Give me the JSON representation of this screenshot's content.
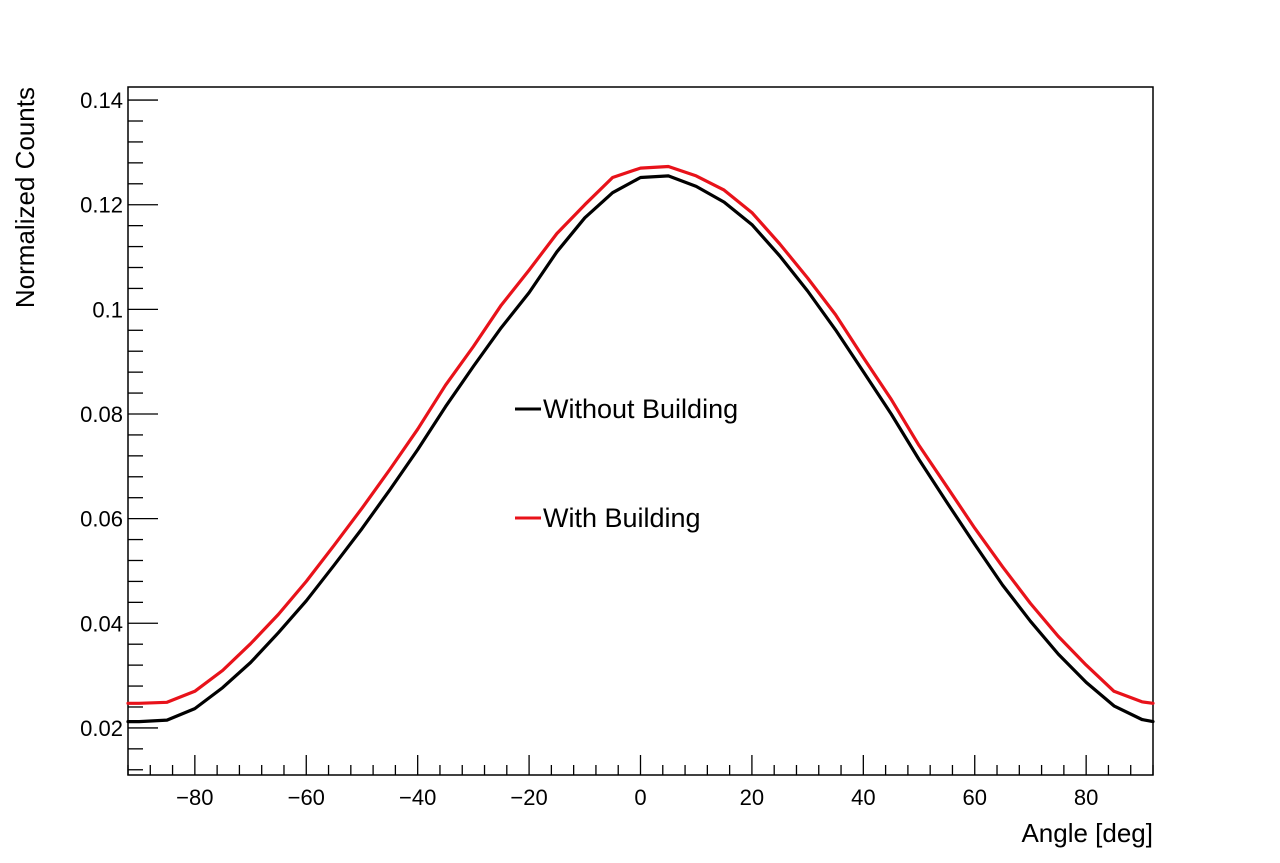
{
  "chart_data": {
    "type": "line",
    "title": "",
    "xlabel": "Angle [deg]",
    "ylabel": "Normalized Counts",
    "xlim": [
      -92,
      92
    ],
    "ylim": [
      0.011,
      0.1425
    ],
    "x_ticks": [
      -80,
      -60,
      -40,
      -20,
      0,
      20,
      40,
      60,
      80
    ],
    "x_tick_labels": [
      "−80",
      "−60",
      "−40",
      "−20",
      "0",
      "20",
      "40",
      "60",
      "80"
    ],
    "y_ticks": [
      0.02,
      0.04,
      0.06,
      0.08,
      0.1,
      0.12,
      0.14
    ],
    "y_tick_labels": [
      "0.02",
      "0.04",
      "0.06",
      "0.08",
      "0.1",
      "0.12",
      "0.14"
    ],
    "grid": false,
    "legend_position": "center",
    "x": [
      -92,
      -90,
      -85,
      -80,
      -75,
      -70,
      -65,
      -60,
      -55,
      -50,
      -45,
      -40,
      -35,
      -30,
      -25,
      -20,
      -15,
      -10,
      -5,
      0,
      5,
      10,
      15,
      20,
      25,
      30,
      35,
      40,
      45,
      50,
      55,
      60,
      65,
      70,
      75,
      80,
      85,
      90,
      92
    ],
    "series": [
      {
        "name": "Without Building",
        "color": "#000000",
        "values": [
          0.0212,
          0.0212,
          0.0215,
          0.0237,
          0.0277,
          0.0325,
          0.0382,
          0.0443,
          0.0511,
          0.0581,
          0.0655,
          0.0732,
          0.0814,
          0.0891,
          0.0965,
          0.1032,
          0.111,
          0.1175,
          0.1223,
          0.1252,
          0.1255,
          0.1235,
          0.1205,
          0.1162,
          0.1102,
          0.1035,
          0.0961,
          0.0881,
          0.08,
          0.0713,
          0.0631,
          0.0551,
          0.0473,
          0.0404,
          0.0341,
          0.0287,
          0.0242,
          0.0216,
          0.0212
        ]
      },
      {
        "name": "With Building",
        "color": "#e8121a",
        "values": [
          0.0247,
          0.0247,
          0.0249,
          0.027,
          0.031,
          0.0361,
          0.0417,
          0.048,
          0.0549,
          0.062,
          0.0694,
          0.0771,
          0.0855,
          0.0929,
          0.1008,
          0.1075,
          0.1145,
          0.12,
          0.1252,
          0.127,
          0.1273,
          0.1255,
          0.1228,
          0.1185,
          0.1125,
          0.106,
          0.099,
          0.0908,
          0.0828,
          0.074,
          0.0661,
          0.0582,
          0.0508,
          0.0438,
          0.0375,
          0.032,
          0.027,
          0.025,
          0.0247
        ]
      }
    ]
  }
}
